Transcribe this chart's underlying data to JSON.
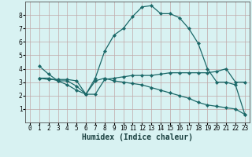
{
  "title": "",
  "xlabel": "Humidex (Indice chaleur)",
  "bg_color": "#d8f2f2",
  "grid_color": "#c0a8a8",
  "line_color": "#1a6868",
  "xlim": [
    -0.5,
    23.5
  ],
  "ylim": [
    0,
    9
  ],
  "line1_x": [
    1,
    2,
    3,
    4,
    5,
    6,
    7,
    8,
    9,
    10,
    11,
    12,
    13,
    14,
    15,
    16,
    17,
    18,
    19,
    20,
    21,
    22,
    23
  ],
  "line1_y": [
    4.2,
    3.6,
    3.1,
    3.1,
    2.7,
    2.1,
    3.3,
    5.3,
    6.5,
    7.0,
    7.9,
    8.6,
    8.7,
    8.1,
    8.1,
    7.8,
    7.0,
    5.9,
    4.0,
    3.0,
    3.0,
    2.8,
    0.6
  ],
  "line2_x": [
    1,
    2,
    3,
    4,
    5,
    6,
    7,
    8,
    9,
    10,
    11,
    12,
    13,
    14,
    15,
    16,
    17,
    18,
    19,
    20,
    21,
    22,
    23
  ],
  "line2_y": [
    3.3,
    3.2,
    3.2,
    3.2,
    3.1,
    2.1,
    2.1,
    3.2,
    3.3,
    3.4,
    3.5,
    3.5,
    3.5,
    3.6,
    3.7,
    3.7,
    3.7,
    3.7,
    3.7,
    3.8,
    4.0,
    3.0,
    3.0
  ],
  "line3_x": [
    1,
    2,
    3,
    4,
    5,
    6,
    7,
    8,
    9,
    10,
    11,
    12,
    13,
    14,
    15,
    16,
    17,
    18,
    19,
    20,
    21,
    22,
    23
  ],
  "line3_y": [
    3.3,
    3.3,
    3.1,
    2.8,
    2.4,
    2.1,
    3.1,
    3.3,
    3.1,
    3.0,
    2.9,
    2.8,
    2.6,
    2.4,
    2.2,
    2.0,
    1.8,
    1.5,
    1.3,
    1.2,
    1.1,
    1.0,
    0.6
  ],
  "xticks": [
    0,
    1,
    2,
    3,
    4,
    5,
    6,
    7,
    8,
    9,
    10,
    11,
    12,
    13,
    14,
    15,
    16,
    17,
    18,
    19,
    20,
    21,
    22,
    23
  ],
  "yticks": [
    1,
    2,
    3,
    4,
    5,
    6,
    7,
    8
  ],
  "xlabel_fontsize": 7.0,
  "tick_fontsize": 5.5
}
